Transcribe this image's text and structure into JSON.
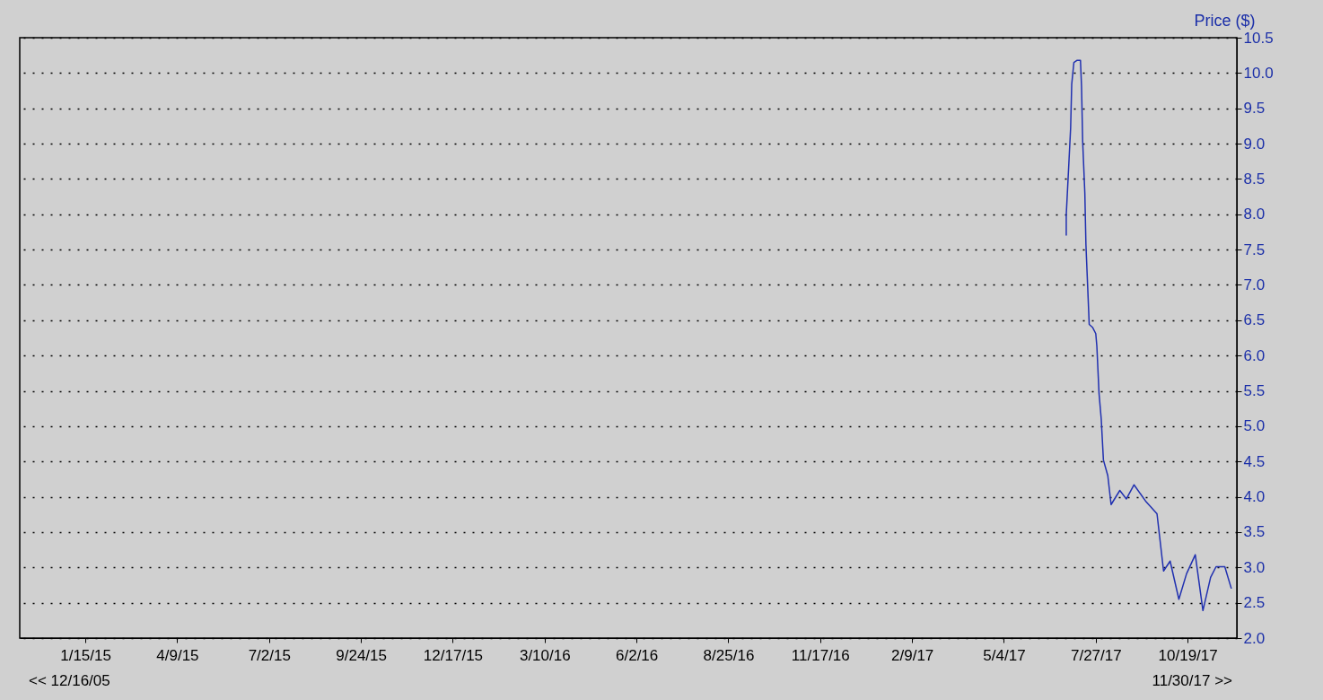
{
  "chart_data": {
    "type": "line",
    "ylabel": "Price ($)",
    "x": [
      "2017-06-30",
      "2017-06-30",
      "2017-07-02",
      "2017-07-04",
      "2017-07-05",
      "2017-07-07",
      "2017-07-10",
      "2017-07-13",
      "2017-07-14",
      "2017-07-15",
      "2017-07-17",
      "2017-07-18",
      "2017-07-20",
      "2017-07-21",
      "2017-07-24",
      "2017-07-27",
      "2017-07-28",
      "2017-07-30",
      "2017-08-01",
      "2017-08-03",
      "2017-08-07",
      "2017-08-10",
      "2017-08-18",
      "2017-08-24",
      "2017-08-31",
      "2017-09-11",
      "2017-09-21",
      "2017-09-27",
      "2017-10-03",
      "2017-10-11",
      "2017-10-18",
      "2017-10-26",
      "2017-11-02",
      "2017-11-09",
      "2017-11-14",
      "2017-11-22",
      "2017-11-28"
    ],
    "series": [
      {
        "color": "#2030b0",
        "values": [
          7.7,
          7.99,
          8.6,
          9.22,
          9.84,
          10.15,
          10.18,
          10.18,
          9.8,
          9.04,
          8.3,
          7.57,
          6.82,
          6.44,
          6.4,
          6.31,
          6.13,
          5.46,
          5.1,
          4.52,
          4.3,
          3.89,
          4.09,
          3.97,
          4.17,
          3.93,
          3.76,
          2.95,
          3.09,
          2.55,
          2.91,
          3.18,
          2.39,
          2.86,
          3.01,
          3.01,
          2.7
        ]
      }
    ],
    "xlim": [
      "2014-11-16",
      "2017-12-03"
    ],
    "xticks": [
      {
        "value": "2015-01-15",
        "label": "1/15/15"
      },
      {
        "value": "2015-04-09",
        "label": "4/9/15"
      },
      {
        "value": "2015-07-02",
        "label": "7/2/15"
      },
      {
        "value": "2015-09-24",
        "label": "9/24/15"
      },
      {
        "value": "2015-12-17",
        "label": "12/17/15"
      },
      {
        "value": "2016-03-10",
        "label": "3/10/16"
      },
      {
        "value": "2016-06-02",
        "label": "6/2/16"
      },
      {
        "value": "2016-08-25",
        "label": "8/25/16"
      },
      {
        "value": "2016-11-17",
        "label": "11/17/16"
      },
      {
        "value": "2017-02-09",
        "label": "2/9/17"
      },
      {
        "value": "2017-05-04",
        "label": "5/4/17"
      },
      {
        "value": "2017-07-27",
        "label": "7/27/17"
      },
      {
        "value": "2017-10-19",
        "label": "10/19/17"
      }
    ],
    "ylim": [
      2.0,
      10.5
    ],
    "yticks": [
      {
        "value": 2,
        "label": "2.0"
      },
      {
        "value": 2.5,
        "label": "2.5"
      },
      {
        "value": 3,
        "label": "3.0"
      },
      {
        "value": 3.5,
        "label": "3.5"
      },
      {
        "value": 4,
        "label": "4.0"
      },
      {
        "value": 4.5,
        "label": "4.5"
      },
      {
        "value": 5,
        "label": "5.0"
      },
      {
        "value": 5.5,
        "label": "5.5"
      },
      {
        "value": 6,
        "label": "6.0"
      },
      {
        "value": 6.5,
        "label": "6.5"
      },
      {
        "value": 7,
        "label": "7.0"
      },
      {
        "value": 7.5,
        "label": "7.5"
      },
      {
        "value": 8,
        "label": "8.0"
      },
      {
        "value": 8.5,
        "label": "8.5"
      },
      {
        "value": 9,
        "label": "9.0"
      },
      {
        "value": 9.5,
        "label": "9.5"
      },
      {
        "value": 10,
        "label": "10.0"
      },
      {
        "value": 10.5,
        "label": "10.5"
      }
    ],
    "grid": "y",
    "marker": "none",
    "line_style": "solid",
    "annotations": [
      "<< 12/16/05",
      "11/30/17 >>"
    ]
  }
}
